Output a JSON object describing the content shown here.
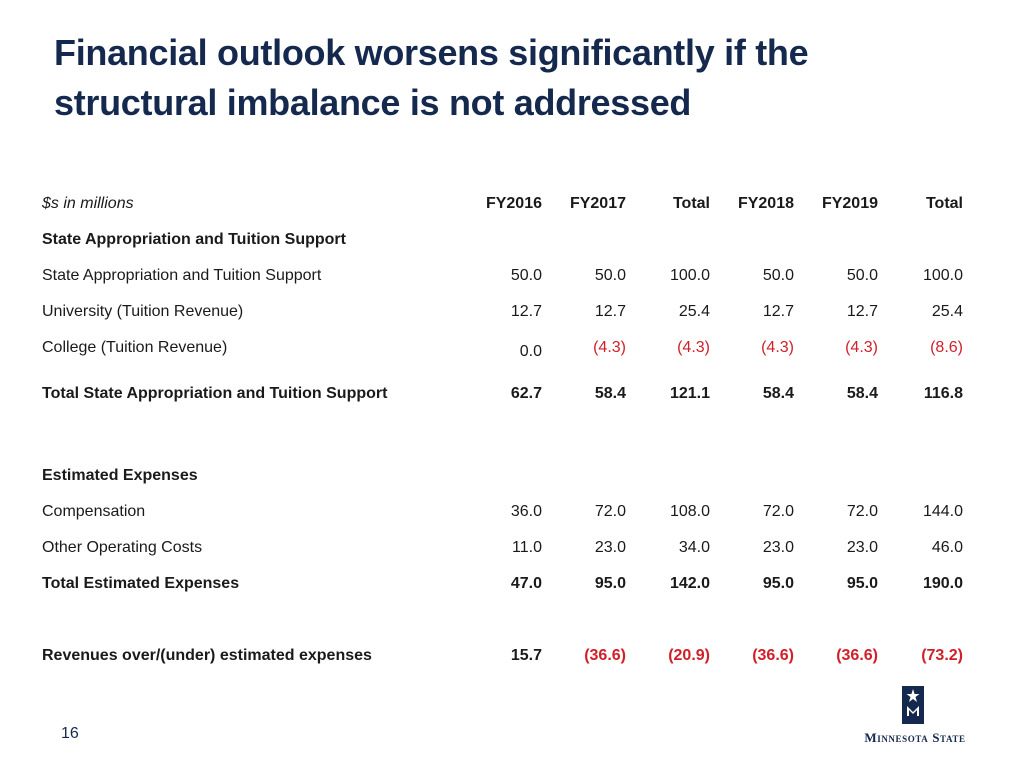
{
  "slide": {
    "title_line1": "Financial outlook worsens significantly if the",
    "title_line2": "structural imbalance is not addressed",
    "page_number": "16",
    "logo_text": "Minnesota State",
    "colors": {
      "title": "#15294e",
      "negative": "#d0202a",
      "text": "#1a1a1a"
    }
  },
  "table": {
    "units_label": "$s in millions",
    "columns": [
      "FY2016",
      "FY2017",
      "Total",
      "FY2018",
      "FY2019",
      "Total"
    ],
    "section1_heading": "State Appropriation and Tuition Support",
    "rows1": [
      {
        "label": "State Appropriation and Tuition Support",
        "values": [
          "50.0",
          "50.0",
          "100.0",
          "50.0",
          "50.0",
          "100.0"
        ]
      },
      {
        "label": "University (Tuition Revenue)",
        "values": [
          "12.7",
          "12.7",
          "25.4",
          "12.7",
          "12.7",
          "25.4"
        ]
      },
      {
        "label": "College (Tuition Revenue)",
        "values": [
          "0.0",
          "(4.3)",
          "(4.3)",
          "(4.3)",
          "(4.3)",
          "(8.6)"
        ]
      }
    ],
    "total1": {
      "label": "Total State Appropriation and Tuition Support",
      "values": [
        "62.7",
        "58.4",
        "121.1",
        "58.4",
        "58.4",
        "116.8"
      ]
    },
    "section2_heading": "Estimated Expenses",
    "rows2": [
      {
        "label": "Compensation",
        "values": [
          "36.0",
          "72.0",
          "108.0",
          "72.0",
          "72.0",
          "144.0"
        ]
      },
      {
        "label": "Other Operating Costs",
        "values": [
          "11.0",
          "23.0",
          "34.0",
          "23.0",
          "23.0",
          "46.0"
        ]
      }
    ],
    "total2": {
      "label": "Total Estimated Expenses",
      "values": [
        "47.0",
        "95.0",
        "142.0",
        "95.0",
        "95.0",
        "190.0"
      ]
    },
    "net": {
      "label": "Revenues over/(under) estimated expenses",
      "values": [
        "15.7",
        "(36.6)",
        "(20.9)",
        "(36.6)",
        "(36.6)",
        "(73.2)"
      ]
    }
  }
}
